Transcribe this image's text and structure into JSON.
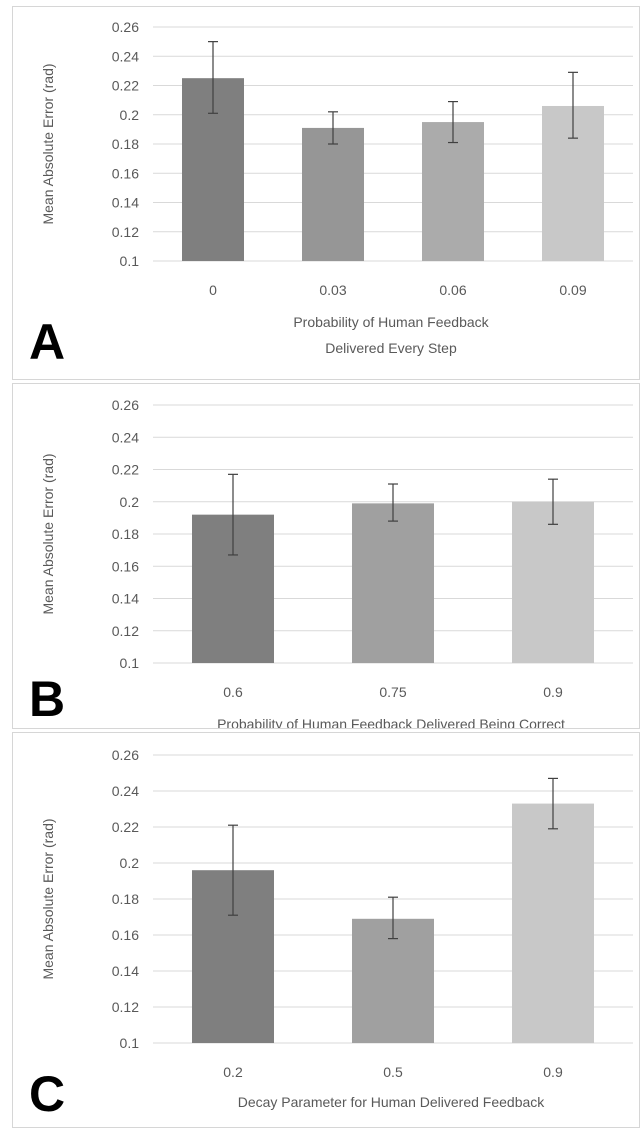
{
  "chart_data": [
    {
      "type": "bar",
      "panel_label": "A",
      "categories": [
        "0",
        "0.03",
        "0.06",
        "0.09"
      ],
      "values": [
        0.225,
        0.191,
        0.195,
        0.206
      ],
      "error_low": [
        0.201,
        0.18,
        0.181,
        0.184
      ],
      "error_high": [
        0.25,
        0.202,
        0.209,
        0.229
      ],
      "xlabel": [
        "Probability of Human Feedback",
        "Delivered Every Step"
      ],
      "ylabel": "Mean Absolute Error (rad)",
      "ylim": [
        0.1,
        0.26
      ],
      "yticks": [
        "0.1",
        "0.12",
        "0.14",
        "0.16",
        "0.18",
        "0.2",
        "0.22",
        "0.24",
        "0.26"
      ],
      "bar_colors": [
        "#7f7f7f",
        "#969696",
        "#ababab",
        "#c8c8c8"
      ],
      "grid": true
    },
    {
      "type": "bar",
      "panel_label": "B",
      "categories": [
        "0.6",
        "0.75",
        "0.9"
      ],
      "values": [
        0.192,
        0.199,
        0.2
      ],
      "error_low": [
        0.167,
        0.188,
        0.186
      ],
      "error_high": [
        0.217,
        0.211,
        0.214
      ],
      "xlabel": [
        "Probability of Human Feedback Delivered Being Correct"
      ],
      "ylabel": "Mean Absolute Error (rad)",
      "ylim": [
        0.1,
        0.26
      ],
      "yticks": [
        "0.1",
        "0.12",
        "0.14",
        "0.16",
        "0.18",
        "0.2",
        "0.22",
        "0.24",
        "0.26"
      ],
      "bar_colors": [
        "#7f7f7f",
        "#a0a0a0",
        "#c8c8c8"
      ],
      "grid": true
    },
    {
      "type": "bar",
      "panel_label": "C",
      "categories": [
        "0.2",
        "0.5",
        "0.9"
      ],
      "values": [
        0.196,
        0.169,
        0.233
      ],
      "error_low": [
        0.171,
        0.158,
        0.219
      ],
      "error_high": [
        0.221,
        0.181,
        0.247
      ],
      "xlabel": [
        "Decay Parameter for Human Delivered Feedback"
      ],
      "ylabel": "Mean Absolute Error (rad)",
      "ylim": [
        0.1,
        0.26
      ],
      "yticks": [
        "0.1",
        "0.12",
        "0.14",
        "0.16",
        "0.18",
        "0.2",
        "0.22",
        "0.24",
        "0.26"
      ],
      "bar_colors": [
        "#7f7f7f",
        "#a0a0a0",
        "#c8c8c8"
      ],
      "grid": true
    }
  ]
}
